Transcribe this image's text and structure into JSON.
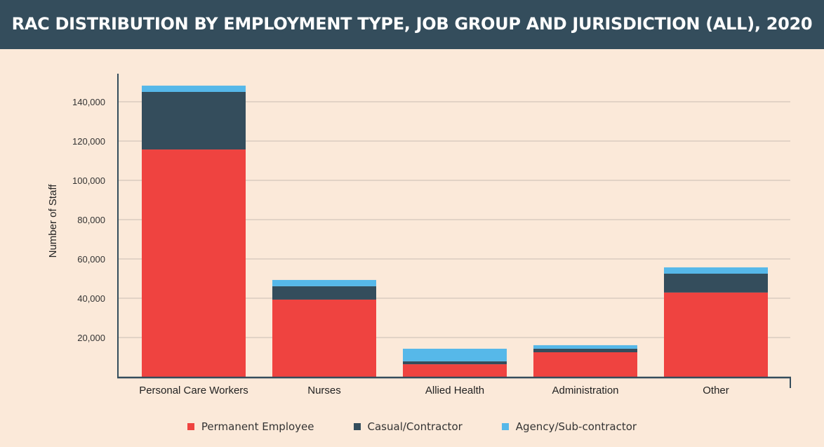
{
  "chart_data": {
    "type": "bar",
    "stacked": true,
    "title": "RAC DISTRIBUTION BY EMPLOYMENT TYPE, JOB GROUP AND JURISDICTION (ALL), 2020",
    "xlabel": "",
    "ylabel": "Number of Staff",
    "ylim": [
      0,
      155000
    ],
    "yticks": [
      20000,
      40000,
      60000,
      80000,
      100000,
      120000,
      140000
    ],
    "ytick_labels": [
      "20,000",
      "40,000",
      "60,000",
      "80,000",
      "100,000",
      "120,000",
      "140,000"
    ],
    "grid": true,
    "legend_position": "bottom",
    "categories": [
      "Personal Care Workers",
      "Nurses",
      "Allied Health",
      "Administration",
      "Other"
    ],
    "series": [
      {
        "name": "Permanent Employee",
        "color": "#ef4340",
        "values": [
          115700,
          39300,
          6400,
          12500,
          42900
        ]
      },
      {
        "name": "Casual/Contractor",
        "color": "#344d5c",
        "values": [
          29300,
          6800,
          1500,
          1800,
          9600
        ]
      },
      {
        "name": "Agency/Sub-contractor",
        "color": "#56b8e9",
        "values": [
          3200,
          3200,
          6400,
          1800,
          3200
        ]
      }
    ]
  }
}
